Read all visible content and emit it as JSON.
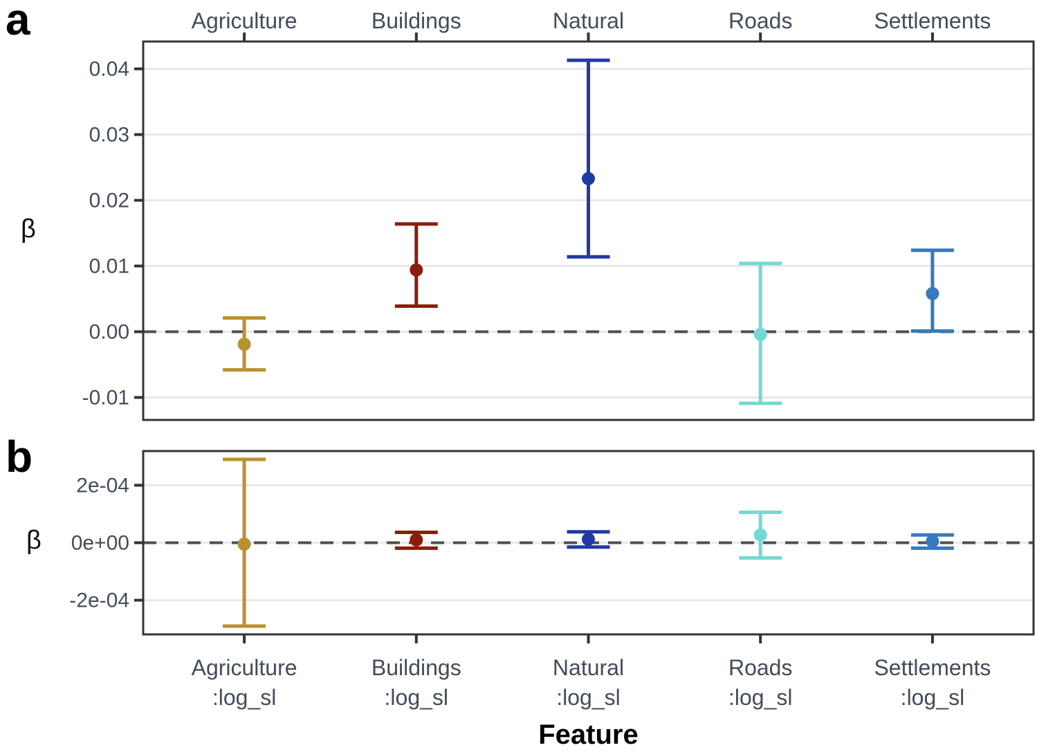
{
  "figure": {
    "panel_a_label": "a",
    "panel_b_label": "b",
    "y_axis_title": "β",
    "x_axis_title": "Feature"
  },
  "chart_data": {
    "type": "pointrange",
    "description": "Two stacked panels of point estimates with confidence-interval error bars per feature; dashed line at zero.",
    "categories": [
      "Agriculture",
      "Buildings",
      "Natural",
      "Roads",
      "Settlements"
    ],
    "interaction_suffix": ":log_sl",
    "colors": {
      "axis_text": "#434C59",
      "grid": "#E8E8E8",
      "border": "#333333",
      "zero_line": "#4F4F4F",
      "series": {
        "Agriculture": "#B8922F",
        "Buildings": "#8B1E0B",
        "Natural": "#2139A6",
        "Roads": "#72DAD2",
        "Settlements": "#3779BD"
      }
    },
    "panels": [
      {
        "id": "a",
        "ylabel": "β",
        "ylim": [
          -0.01342,
          0.04416
        ],
        "grid": true,
        "zero_line_dashed": true,
        "top_axis_labels": true,
        "yticks": [
          {
            "value": 0.04,
            "label": "0.04"
          },
          {
            "value": 0.03,
            "label": "0.03"
          },
          {
            "value": 0.02,
            "label": "0.02"
          },
          {
            "value": 0.01,
            "label": "0.01"
          },
          {
            "value": 0.0,
            "label": "0.00"
          },
          {
            "value": -0.01,
            "label": "-0.01"
          }
        ],
        "points": [
          {
            "category": "Agriculture",
            "estimate": -0.0019,
            "lower": -0.0058,
            "upper": 0.0021
          },
          {
            "category": "Buildings",
            "estimate": 0.0094,
            "lower": 0.0039,
            "upper": 0.0164
          },
          {
            "category": "Natural",
            "estimate": 0.0233,
            "lower": 0.0114,
            "upper": 0.0413
          },
          {
            "category": "Roads",
            "estimate": -0.0004,
            "lower": -0.0109,
            "upper": 0.0104
          },
          {
            "category": "Settlements",
            "estimate": 0.0058,
            "lower": 0.0001,
            "upper": 0.0124
          }
        ]
      },
      {
        "id": "b",
        "ylabel": "β",
        "ylim": [
          -0.000319,
          0.000319
        ],
        "grid": true,
        "zero_line_dashed": true,
        "bottom_axis_labels": true,
        "yticks": [
          {
            "value": 0.0002,
            "label": "2e-04"
          },
          {
            "value": 0.0,
            "label": "0e+00"
          },
          {
            "value": -0.0002,
            "label": "-2e-04"
          }
        ],
        "points": [
          {
            "category": "Agriculture",
            "estimate": -5e-06,
            "lower": -0.00029,
            "upper": 0.00029
          },
          {
            "category": "Buildings",
            "estimate": 1e-05,
            "lower": -1.9e-05,
            "upper": 3.6e-05
          },
          {
            "category": "Natural",
            "estimate": 1.2e-05,
            "lower": -1.5e-05,
            "upper": 3.8e-05
          },
          {
            "category": "Roads",
            "estimate": 2.7e-05,
            "lower": -5.3e-05,
            "upper": 0.000106
          },
          {
            "category": "Settlements",
            "estimate": 5e-06,
            "lower": -1.9e-05,
            "upper": 2.7e-05
          }
        ]
      }
    ],
    "xlabel": "Feature"
  }
}
